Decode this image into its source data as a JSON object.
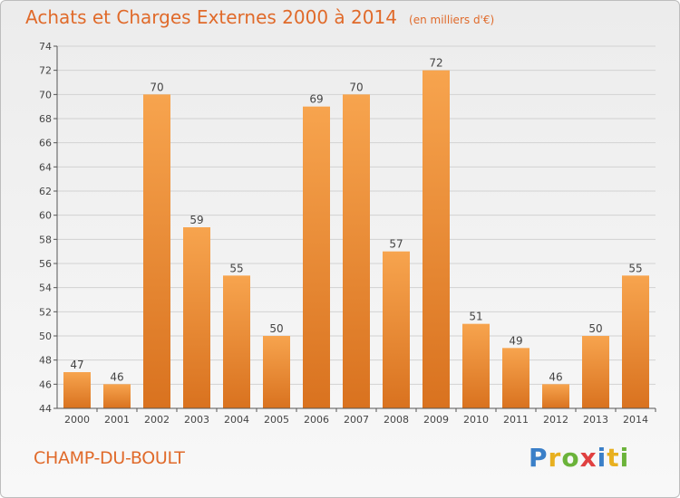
{
  "title": "Achats et Charges Externes 2000 à 2014",
  "unit": "(en milliers d'€)",
  "commune": "CHAMP-DU-BOULT",
  "logo": {
    "text": "Proxiti",
    "letters": [
      {
        "ch": "P",
        "color": "#3a7fc8"
      },
      {
        "ch": "r",
        "color": "#e8b020"
      },
      {
        "ch": "o",
        "color": "#6bb33a"
      },
      {
        "ch": "x",
        "color": "#e04040"
      },
      {
        "ch": "i",
        "color": "#3a7fc8"
      },
      {
        "ch": "t",
        "color": "#e8b020"
      },
      {
        "ch": "i",
        "color": "#6bb33a"
      }
    ]
  },
  "colors": {
    "bar_light": "#f7a44e",
    "bar_dark": "#d9721f",
    "title": "#e06a2a",
    "axis": "#555555"
  },
  "chart_data": {
    "type": "bar",
    "categories": [
      "2000",
      "2001",
      "2002",
      "2003",
      "2004",
      "2005",
      "2006",
      "2007",
      "2008",
      "2009",
      "2010",
      "2011",
      "2012",
      "2013",
      "2014"
    ],
    "values": [
      47,
      46,
      70,
      59,
      55,
      50,
      69,
      70,
      57,
      72,
      51,
      49,
      46,
      50,
      55
    ],
    "ylim": [
      44,
      74
    ],
    "yticks": [
      44,
      46,
      48,
      50,
      52,
      54,
      56,
      58,
      60,
      62,
      64,
      66,
      68,
      70,
      72,
      74
    ],
    "grid": true
  }
}
